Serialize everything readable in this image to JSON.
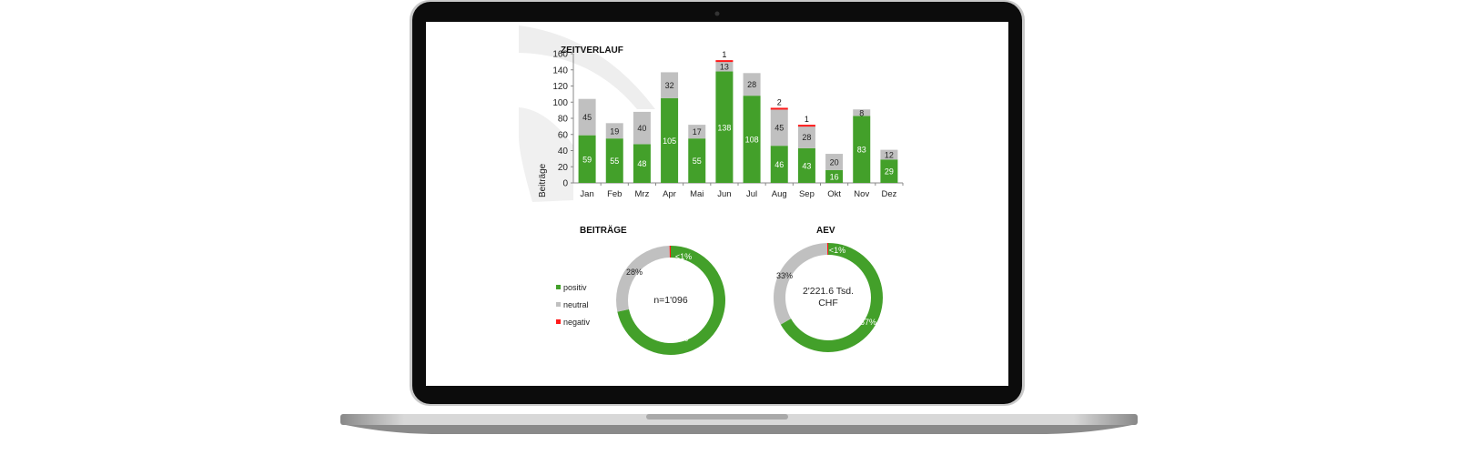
{
  "colors": {
    "positiv": "#43a02a",
    "neutral": "#c0c0c0",
    "negativ": "#ff1a1a"
  },
  "legend": [
    {
      "label": "positiv",
      "color": "#43a02a"
    },
    {
      "label": "neutral",
      "color": "#c0c0c0"
    },
    {
      "label": "negativ",
      "color": "#ff1a1a"
    }
  ],
  "chart_data": [
    {
      "type": "bar",
      "stacked": true,
      "title": "ZEITVERLAUF",
      "xlabel": "",
      "ylabel": "Beiträge",
      "ylim": [
        0,
        160
      ],
      "yticks": [
        0,
        20,
        40,
        60,
        80,
        100,
        120,
        140,
        160
      ],
      "grid": false,
      "categories": [
        "Jan",
        "Feb",
        "Mrz",
        "Apr",
        "Mai",
        "Jun",
        "Jul",
        "Aug",
        "Sep",
        "Okt",
        "Nov",
        "Dez"
      ],
      "series": [
        {
          "name": "positiv",
          "values": [
            59,
            55,
            48,
            105,
            55,
            138,
            108,
            46,
            43,
            16,
            83,
            29
          ]
        },
        {
          "name": "neutral",
          "values": [
            45,
            19,
            40,
            32,
            17,
            13,
            28,
            45,
            28,
            20,
            8,
            12
          ]
        },
        {
          "name": "negativ",
          "values": [
            0,
            0,
            0,
            0,
            0,
            1,
            0,
            2,
            1,
            0,
            0,
            0
          ]
        }
      ]
    },
    {
      "type": "pie",
      "donut": true,
      "title": "BEITRÄGE",
      "center_label": "n=1'096",
      "slices": [
        {
          "name": "positiv",
          "value": 785,
          "label": "72%"
        },
        {
          "name": "neutral",
          "value": 307,
          "label": "28%"
        },
        {
          "name": "negativ",
          "value": 4,
          "label": "<1%"
        }
      ]
    },
    {
      "type": "pie",
      "donut": true,
      "title": "AEV",
      "center_label": [
        "2'221.6 Tsd.",
        "CHF"
      ],
      "slices": [
        {
          "name": "positiv",
          "value": 67,
          "label": "67%"
        },
        {
          "name": "neutral",
          "value": 33,
          "label": "33%"
        },
        {
          "name": "negativ",
          "value": 0.3,
          "label": "<1%"
        }
      ]
    }
  ]
}
